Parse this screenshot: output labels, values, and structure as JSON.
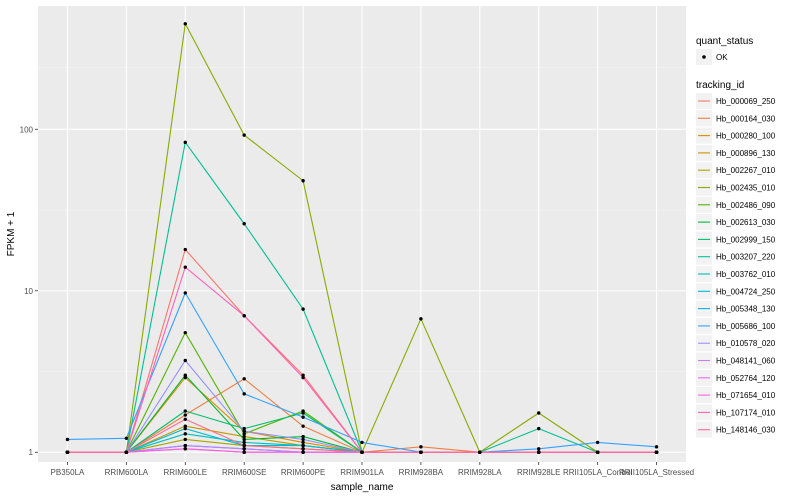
{
  "chart_data": {
    "type": "line",
    "xlabel": "sample_name",
    "ylabel": "FPKM + 1",
    "y_scale": "log10",
    "ylim": [
      0.87,
      580
    ],
    "y_ticks": [
      1,
      10,
      100
    ],
    "y_tick_labels": [
      "1",
      "10",
      "100"
    ],
    "grid": true,
    "legend_position": "right",
    "colors": {
      "panel_bg": "#ebebeb",
      "grid_major": "#ffffff",
      "point": "#000000"
    },
    "x": [
      "PB350LA",
      "RRIM600LA",
      "RRIM600LE",
      "RRIM600SE",
      "RRIM600PE",
      "RRIM901LA",
      "RRIM928BA",
      "RRIM928LA",
      "RRIM928LE",
      "RRII105LA_Control",
      "RRII105LA_Stressed"
    ],
    "point_legend": {
      "title": "quant_status",
      "entries": [
        "OK"
      ]
    },
    "series_legend_title": "tracking_id",
    "series": [
      {
        "name": "Hb_000069_250",
        "color": "#F8766D",
        "values": [
          1.0,
          1.0,
          18.0,
          7.0,
          3.0,
          1.0,
          1.0,
          1.0,
          1.0,
          1.0,
          1.0
        ]
      },
      {
        "name": "Hb_000164_030",
        "color": "#EE8044",
        "values": [
          1.0,
          1.0,
          1.7,
          2.85,
          1.45,
          1.0,
          1.08,
          1.0,
          1.0,
          1.0,
          1.0
        ]
      },
      {
        "name": "Hb_000280_100",
        "color": "#DD8D00",
        "values": [
          1.0,
          1.0,
          2.9,
          1.35,
          1.15,
          1.0,
          1.0,
          1.0,
          1.0,
          1.0,
          1.0
        ]
      },
      {
        "name": "Hb_000896_130",
        "color": "#C59900",
        "values": [
          1.0,
          1.0,
          1.45,
          1.25,
          1.1,
          1.0,
          1.0,
          1.0,
          1.0,
          1.0,
          1.0
        ]
      },
      {
        "name": "Hb_002267_010",
        "color": "#A9A400",
        "values": [
          1.0,
          1.0,
          1.2,
          1.1,
          1.05,
          1.0,
          1.0,
          1.0,
          1.0,
          1.0,
          1.0
        ]
      },
      {
        "name": "Hb_002435_010",
        "color": "#86AC00",
        "values": [
          1.0,
          1.0,
          450.0,
          92.0,
          48.0,
          1.0,
          6.7,
          1.0,
          1.75,
          1.0,
          1.0
        ]
      },
      {
        "name": "Hb_002486_090",
        "color": "#53B400",
        "values": [
          1.0,
          1.0,
          5.5,
          1.3,
          1.8,
          1.0,
          1.0,
          1.0,
          1.0,
          1.0,
          1.0
        ]
      },
      {
        "name": "Hb_002613_030",
        "color": "#00BA38",
        "values": [
          1.0,
          1.0,
          3.0,
          1.2,
          1.25,
          1.0,
          1.0,
          1.0,
          1.0,
          1.0,
          1.0
        ]
      },
      {
        "name": "Hb_002999_150",
        "color": "#00BE6C",
        "values": [
          1.0,
          1.0,
          1.8,
          1.4,
          1.75,
          1.0,
          1.0,
          1.0,
          1.0,
          1.0,
          1.0
        ]
      },
      {
        "name": "Hb_003207_220",
        "color": "#00C094",
        "values": [
          1.0,
          1.0,
          83.0,
          26.0,
          7.7,
          1.0,
          1.0,
          1.0,
          1.4,
          1.0,
          1.0
        ]
      },
      {
        "name": "Hb_003762_010",
        "color": "#00BFB8",
        "values": [
          1.0,
          1.0,
          1.3,
          1.15,
          1.1,
          1.0,
          1.0,
          1.0,
          1.0,
          1.0,
          1.0
        ]
      },
      {
        "name": "Hb_004724_250",
        "color": "#00BAD6",
        "values": [
          1.0,
          1.0,
          1.4,
          1.1,
          1.1,
          1.0,
          1.0,
          1.0,
          1.0,
          1.0,
          1.0
        ]
      },
      {
        "name": "Hb_005348_130",
        "color": "#00B0F0",
        "values": [
          1.0,
          1.0,
          1.1,
          1.05,
          1.0,
          1.0,
          1.0,
          1.0,
          1.0,
          1.0,
          1.0
        ]
      },
      {
        "name": "Hb_005686_100",
        "color": "#35A2FF",
        "values": [
          1.2,
          1.22,
          9.7,
          2.3,
          1.65,
          1.15,
          1.0,
          1.0,
          1.05,
          1.15,
          1.08
        ]
      },
      {
        "name": "Hb_010578_020",
        "color": "#9590FF",
        "values": [
          1.0,
          1.0,
          3.7,
          1.35,
          1.2,
          1.0,
          1.0,
          1.0,
          1.0,
          1.0,
          1.0
        ]
      },
      {
        "name": "Hb_048141_060",
        "color": "#C77CFF",
        "values": [
          1.0,
          1.0,
          1.1,
          1.05,
          1.0,
          1.0,
          1.0,
          1.0,
          1.0,
          1.0,
          1.0
        ]
      },
      {
        "name": "Hb_052764_120",
        "color": "#E76BF3",
        "values": [
          1.0,
          1.0,
          1.05,
          1.0,
          1.0,
          1.0,
          1.0,
          1.0,
          1.0,
          1.0,
          1.0
        ]
      },
      {
        "name": "Hb_071654_010",
        "color": "#FA62DB",
        "values": [
          1.0,
          1.0,
          1.05,
          1.0,
          1.0,
          1.0,
          1.0,
          1.0,
          1.0,
          1.0,
          1.0
        ]
      },
      {
        "name": "Hb_107174_010",
        "color": "#FF62BC",
        "values": [
          1.0,
          1.0,
          14.0,
          7.0,
          2.9,
          1.0,
          1.0,
          1.0,
          1.0,
          1.0,
          1.0
        ]
      },
      {
        "name": "Hb_148146_030",
        "color": "#FF6C91",
        "values": [
          1.0,
          1.0,
          1.6,
          1.1,
          1.05,
          1.0,
          1.0,
          1.0,
          1.0,
          1.0,
          1.0
        ]
      }
    ]
  }
}
